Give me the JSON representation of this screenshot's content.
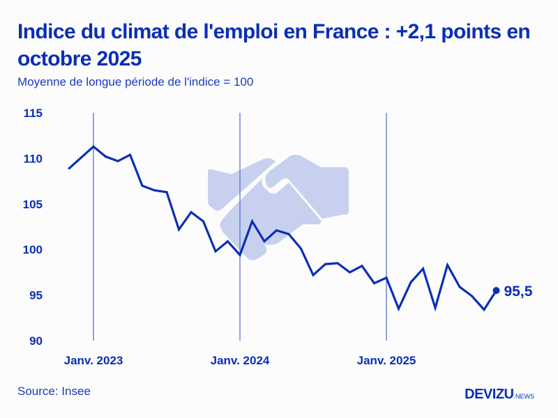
{
  "header": {
    "title": "Indice du climat de l'emploi en France : +2,1 points en octobre 2025",
    "subtitle": "Moyenne de longue période de l'indice = 100"
  },
  "footer": {
    "source": "Source: Insee",
    "logo_main": "DEVIZU",
    "logo_suffix": ".NEWS"
  },
  "colors": {
    "line": "#0a2fb5",
    "gridline": "#5a72cf",
    "watermark": "#c7d1ef",
    "background": "#fcfcfd"
  },
  "decorations": {
    "watermark_icon": "handshake-icon"
  },
  "chart_data": {
    "type": "line",
    "title": "Indice du climat de l'emploi en France : +2,1 points en octobre 2025",
    "subtitle": "Moyenne de longue période de l'indice = 100",
    "xlabel": "",
    "ylabel": "",
    "ylim": [
      90,
      115
    ],
    "yticks": [
      90,
      95,
      100,
      105,
      110,
      115
    ],
    "ytick_labels": [
      "90",
      "95",
      "100",
      "105",
      "110",
      "115"
    ],
    "xticks": [
      {
        "label": "Janv. 2023",
        "index": 2
      },
      {
        "label": "Janv. 2024",
        "index": 14
      },
      {
        "label": "Janv. 2025",
        "index": 26
      }
    ],
    "grid": "vertical lines at January of each year",
    "legend": "none",
    "x": [
      "2022-11",
      "2022-12",
      "2023-01",
      "2023-02",
      "2023-03",
      "2023-04",
      "2023-05",
      "2023-06",
      "2023-07",
      "2023-08",
      "2023-09",
      "2023-10",
      "2023-11",
      "2023-12",
      "2024-01",
      "2024-02",
      "2024-03",
      "2024-04",
      "2024-05",
      "2024-06",
      "2024-07",
      "2024-08",
      "2024-09",
      "2024-10",
      "2024-11",
      "2024-12",
      "2025-01",
      "2025-02",
      "2025-03",
      "2025-04",
      "2025-05",
      "2025-06",
      "2025-07",
      "2025-08",
      "2025-09",
      "2025-10"
    ],
    "series": [
      {
        "name": "Indice du climat de l'emploi",
        "values": [
          108.9,
          110.1,
          111.3,
          110.2,
          109.7,
          110.4,
          107.0,
          106.5,
          106.3,
          102.2,
          104.1,
          103.1,
          99.8,
          100.9,
          99.4,
          103.1,
          100.9,
          102.1,
          101.7,
          100.1,
          97.2,
          98.4,
          98.5,
          97.5,
          98.2,
          96.3,
          96.9,
          93.5,
          96.4,
          97.9,
          93.6,
          98.3,
          95.9,
          94.9,
          93.4,
          95.5
        ]
      }
    ],
    "annotations": [
      {
        "text": "95,5",
        "target": "last-point"
      }
    ]
  }
}
